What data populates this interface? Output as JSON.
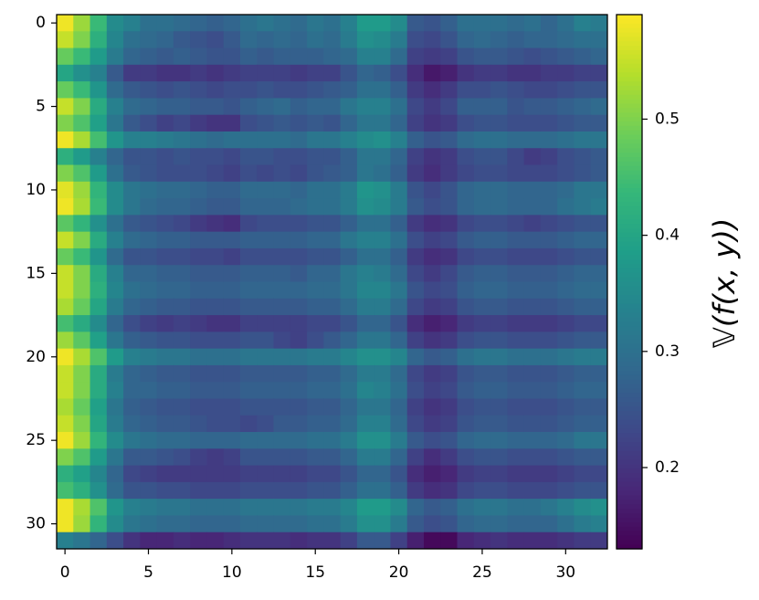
{
  "chart_data": {
    "type": "heatmap",
    "colormap": "viridis",
    "xlim": [
      -0.5,
      32.5
    ],
    "xticks": [
      0,
      5,
      10,
      15,
      20,
      25,
      30
    ],
    "ylim": [
      31.5,
      -0.5
    ],
    "yticks": [
      0,
      5,
      10,
      15,
      20,
      25,
      30
    ],
    "colorbar": {
      "label": "𝕍(f(x, y))",
      "lim": [
        0.13,
        0.59
      ],
      "ticks": [
        0.2,
        0.3,
        0.4,
        0.5
      ]
    },
    "values": [
      [
        0.58,
        0.52,
        0.44,
        0.35,
        0.33,
        0.3,
        0.3,
        0.29,
        0.28,
        0.27,
        0.28,
        0.3,
        0.31,
        0.3,
        0.29,
        0.31,
        0.3,
        0.33,
        0.38,
        0.38,
        0.35,
        0.26,
        0.25,
        0.27,
        0.3,
        0.3,
        0.3,
        0.29,
        0.3,
        0.28,
        0.3,
        0.33,
        0.32
      ],
      [
        0.55,
        0.5,
        0.42,
        0.34,
        0.3,
        0.29,
        0.28,
        0.26,
        0.25,
        0.24,
        0.26,
        0.29,
        0.28,
        0.29,
        0.28,
        0.3,
        0.29,
        0.32,
        0.36,
        0.35,
        0.32,
        0.24,
        0.23,
        0.25,
        0.28,
        0.29,
        0.28,
        0.27,
        0.28,
        0.28,
        0.29,
        0.3,
        0.3
      ],
      [
        0.48,
        0.44,
        0.38,
        0.32,
        0.28,
        0.27,
        0.26,
        0.27,
        0.26,
        0.25,
        0.25,
        0.27,
        0.26,
        0.27,
        0.27,
        0.27,
        0.28,
        0.29,
        0.33,
        0.33,
        0.29,
        0.22,
        0.21,
        0.22,
        0.25,
        0.26,
        0.26,
        0.25,
        0.24,
        0.25,
        0.26,
        0.27,
        0.28
      ],
      [
        0.4,
        0.36,
        0.33,
        0.26,
        0.21,
        0.21,
        0.2,
        0.2,
        0.21,
        0.2,
        0.21,
        0.22,
        0.22,
        0.22,
        0.21,
        0.22,
        0.22,
        0.25,
        0.28,
        0.27,
        0.24,
        0.19,
        0.16,
        0.17,
        0.2,
        0.21,
        0.21,
        0.2,
        0.2,
        0.21,
        0.21,
        0.22,
        0.22
      ],
      [
        0.48,
        0.44,
        0.37,
        0.29,
        0.26,
        0.25,
        0.24,
        0.25,
        0.24,
        0.23,
        0.24,
        0.24,
        0.25,
        0.24,
        0.24,
        0.25,
        0.26,
        0.27,
        0.3,
        0.3,
        0.27,
        0.21,
        0.19,
        0.21,
        0.24,
        0.24,
        0.25,
        0.24,
        0.23,
        0.23,
        0.24,
        0.25,
        0.25
      ],
      [
        0.55,
        0.5,
        0.41,
        0.33,
        0.29,
        0.28,
        0.27,
        0.27,
        0.26,
        0.26,
        0.25,
        0.27,
        0.28,
        0.29,
        0.27,
        0.28,
        0.28,
        0.31,
        0.33,
        0.33,
        0.3,
        0.23,
        0.21,
        0.23,
        0.27,
        0.27,
        0.27,
        0.25,
        0.26,
        0.26,
        0.27,
        0.28,
        0.29
      ],
      [
        0.5,
        0.46,
        0.39,
        0.31,
        0.26,
        0.24,
        0.22,
        0.23,
        0.21,
        0.2,
        0.2,
        0.24,
        0.25,
        0.26,
        0.25,
        0.26,
        0.25,
        0.28,
        0.31,
        0.31,
        0.28,
        0.22,
        0.2,
        0.21,
        0.24,
        0.25,
        0.25,
        0.24,
        0.24,
        0.24,
        0.25,
        0.26,
        0.26
      ],
      [
        0.58,
        0.53,
        0.45,
        0.37,
        0.33,
        0.33,
        0.32,
        0.31,
        0.3,
        0.29,
        0.3,
        0.3,
        0.3,
        0.3,
        0.29,
        0.31,
        0.31,
        0.33,
        0.35,
        0.36,
        0.33,
        0.27,
        0.25,
        0.26,
        0.29,
        0.3,
        0.3,
        0.29,
        0.29,
        0.29,
        0.3,
        0.31,
        0.31
      ],
      [
        0.42,
        0.38,
        0.33,
        0.28,
        0.25,
        0.25,
        0.24,
        0.25,
        0.24,
        0.24,
        0.23,
        0.25,
        0.25,
        0.24,
        0.24,
        0.25,
        0.25,
        0.27,
        0.31,
        0.31,
        0.28,
        0.22,
        0.2,
        0.21,
        0.24,
        0.25,
        0.25,
        0.23,
        0.21,
        0.22,
        0.24,
        0.25,
        0.26
      ],
      [
        0.5,
        0.46,
        0.38,
        0.3,
        0.26,
        0.25,
        0.24,
        0.24,
        0.24,
        0.23,
        0.22,
        0.24,
        0.23,
        0.24,
        0.23,
        0.25,
        0.26,
        0.27,
        0.31,
        0.3,
        0.27,
        0.21,
        0.19,
        0.21,
        0.23,
        0.24,
        0.24,
        0.23,
        0.23,
        0.23,
        0.24,
        0.25,
        0.26
      ],
      [
        0.57,
        0.52,
        0.43,
        0.35,
        0.31,
        0.3,
        0.29,
        0.29,
        0.28,
        0.27,
        0.27,
        0.29,
        0.29,
        0.29,
        0.28,
        0.3,
        0.3,
        0.32,
        0.37,
        0.36,
        0.32,
        0.25,
        0.23,
        0.25,
        0.28,
        0.29,
        0.29,
        0.28,
        0.28,
        0.28,
        0.29,
        0.31,
        0.31
      ],
      [
        0.58,
        0.53,
        0.44,
        0.35,
        0.31,
        0.29,
        0.28,
        0.28,
        0.27,
        0.26,
        0.26,
        0.28,
        0.28,
        0.28,
        0.29,
        0.3,
        0.3,
        0.32,
        0.36,
        0.35,
        0.32,
        0.26,
        0.24,
        0.25,
        0.28,
        0.29,
        0.29,
        0.28,
        0.28,
        0.28,
        0.3,
        0.31,
        0.32
      ],
      [
        0.47,
        0.43,
        0.36,
        0.3,
        0.26,
        0.25,
        0.24,
        0.23,
        0.21,
        0.2,
        0.19,
        0.23,
        0.24,
        0.24,
        0.24,
        0.25,
        0.25,
        0.27,
        0.3,
        0.3,
        0.27,
        0.21,
        0.19,
        0.2,
        0.23,
        0.24,
        0.24,
        0.23,
        0.22,
        0.23,
        0.24,
        0.25,
        0.25
      ],
      [
        0.55,
        0.5,
        0.41,
        0.33,
        0.29,
        0.28,
        0.27,
        0.27,
        0.26,
        0.26,
        0.26,
        0.27,
        0.27,
        0.27,
        0.27,
        0.28,
        0.28,
        0.31,
        0.33,
        0.33,
        0.3,
        0.24,
        0.22,
        0.23,
        0.26,
        0.27,
        0.27,
        0.26,
        0.26,
        0.26,
        0.27,
        0.28,
        0.28
      ],
      [
        0.48,
        0.44,
        0.37,
        0.29,
        0.25,
        0.25,
        0.24,
        0.24,
        0.23,
        0.23,
        0.22,
        0.24,
        0.24,
        0.24,
        0.24,
        0.25,
        0.25,
        0.27,
        0.3,
        0.3,
        0.27,
        0.21,
        0.19,
        0.2,
        0.23,
        0.24,
        0.24,
        0.23,
        0.23,
        0.23,
        0.24,
        0.25,
        0.25
      ],
      [
        0.55,
        0.5,
        0.41,
        0.33,
        0.28,
        0.28,
        0.27,
        0.27,
        0.26,
        0.26,
        0.26,
        0.27,
        0.27,
        0.27,
        0.26,
        0.28,
        0.28,
        0.31,
        0.33,
        0.32,
        0.29,
        0.23,
        0.21,
        0.23,
        0.26,
        0.27,
        0.27,
        0.26,
        0.26,
        0.26,
        0.27,
        0.28,
        0.28
      ],
      [
        0.55,
        0.5,
        0.42,
        0.34,
        0.3,
        0.29,
        0.28,
        0.28,
        0.27,
        0.27,
        0.27,
        0.28,
        0.28,
        0.28,
        0.28,
        0.29,
        0.29,
        0.31,
        0.34,
        0.34,
        0.31,
        0.25,
        0.23,
        0.24,
        0.27,
        0.28,
        0.28,
        0.27,
        0.27,
        0.27,
        0.28,
        0.29,
        0.29
      ],
      [
        0.53,
        0.48,
        0.4,
        0.32,
        0.28,
        0.27,
        0.26,
        0.26,
        0.25,
        0.25,
        0.25,
        0.26,
        0.26,
        0.26,
        0.26,
        0.27,
        0.27,
        0.29,
        0.32,
        0.32,
        0.29,
        0.23,
        0.21,
        0.22,
        0.25,
        0.26,
        0.26,
        0.25,
        0.25,
        0.25,
        0.26,
        0.27,
        0.27
      ],
      [
        0.45,
        0.41,
        0.35,
        0.28,
        0.24,
        0.22,
        0.21,
        0.22,
        0.21,
        0.2,
        0.2,
        0.22,
        0.22,
        0.22,
        0.22,
        0.23,
        0.23,
        0.25,
        0.28,
        0.28,
        0.25,
        0.19,
        0.17,
        0.18,
        0.21,
        0.22,
        0.22,
        0.21,
        0.21,
        0.21,
        0.22,
        0.23,
        0.23
      ],
      [
        0.52,
        0.47,
        0.39,
        0.31,
        0.27,
        0.26,
        0.25,
        0.25,
        0.24,
        0.24,
        0.24,
        0.25,
        0.25,
        0.23,
        0.22,
        0.24,
        0.26,
        0.28,
        0.31,
        0.31,
        0.28,
        0.22,
        0.2,
        0.21,
        0.24,
        0.25,
        0.25,
        0.24,
        0.24,
        0.24,
        0.25,
        0.26,
        0.26
      ],
      [
        0.58,
        0.53,
        0.46,
        0.38,
        0.33,
        0.32,
        0.31,
        0.31,
        0.3,
        0.3,
        0.3,
        0.31,
        0.31,
        0.31,
        0.31,
        0.32,
        0.32,
        0.34,
        0.36,
        0.36,
        0.34,
        0.28,
        0.26,
        0.27,
        0.3,
        0.31,
        0.31,
        0.3,
        0.3,
        0.3,
        0.31,
        0.32,
        0.32
      ],
      [
        0.55,
        0.5,
        0.41,
        0.32,
        0.28,
        0.27,
        0.26,
        0.26,
        0.25,
        0.25,
        0.25,
        0.26,
        0.26,
        0.26,
        0.26,
        0.27,
        0.27,
        0.29,
        0.32,
        0.32,
        0.29,
        0.23,
        0.21,
        0.22,
        0.25,
        0.26,
        0.26,
        0.25,
        0.25,
        0.25,
        0.26,
        0.27,
        0.27
      ],
      [
        0.55,
        0.5,
        0.41,
        0.33,
        0.28,
        0.28,
        0.27,
        0.27,
        0.26,
        0.26,
        0.26,
        0.27,
        0.27,
        0.27,
        0.27,
        0.28,
        0.28,
        0.3,
        0.34,
        0.33,
        0.3,
        0.24,
        0.22,
        0.23,
        0.26,
        0.27,
        0.27,
        0.26,
        0.26,
        0.26,
        0.27,
        0.28,
        0.28
      ],
      [
        0.53,
        0.48,
        0.39,
        0.31,
        0.27,
        0.26,
        0.25,
        0.25,
        0.24,
        0.24,
        0.24,
        0.25,
        0.25,
        0.25,
        0.25,
        0.26,
        0.26,
        0.28,
        0.31,
        0.31,
        0.28,
        0.22,
        0.2,
        0.21,
        0.24,
        0.25,
        0.25,
        0.24,
        0.24,
        0.24,
        0.25,
        0.26,
        0.26
      ],
      [
        0.55,
        0.5,
        0.4,
        0.32,
        0.28,
        0.27,
        0.26,
        0.26,
        0.25,
        0.24,
        0.24,
        0.23,
        0.24,
        0.26,
        0.26,
        0.27,
        0.27,
        0.29,
        0.33,
        0.33,
        0.29,
        0.23,
        0.21,
        0.22,
        0.25,
        0.26,
        0.26,
        0.25,
        0.25,
        0.25,
        0.26,
        0.27,
        0.27
      ],
      [
        0.58,
        0.52,
        0.43,
        0.35,
        0.31,
        0.3,
        0.29,
        0.29,
        0.28,
        0.28,
        0.28,
        0.29,
        0.29,
        0.29,
        0.29,
        0.3,
        0.3,
        0.32,
        0.36,
        0.36,
        0.32,
        0.26,
        0.24,
        0.25,
        0.28,
        0.29,
        0.29,
        0.28,
        0.28,
        0.28,
        0.29,
        0.31,
        0.31
      ],
      [
        0.5,
        0.46,
        0.38,
        0.31,
        0.26,
        0.26,
        0.25,
        0.24,
        0.22,
        0.21,
        0.22,
        0.25,
        0.25,
        0.25,
        0.25,
        0.26,
        0.26,
        0.28,
        0.32,
        0.32,
        0.28,
        0.22,
        0.19,
        0.21,
        0.24,
        0.25,
        0.25,
        0.24,
        0.24,
        0.24,
        0.25,
        0.26,
        0.26
      ],
      [
        0.42,
        0.39,
        0.34,
        0.28,
        0.23,
        0.22,
        0.21,
        0.21,
        0.21,
        0.21,
        0.21,
        0.22,
        0.22,
        0.22,
        0.22,
        0.23,
        0.23,
        0.25,
        0.28,
        0.28,
        0.25,
        0.19,
        0.17,
        0.18,
        0.21,
        0.22,
        0.22,
        0.21,
        0.21,
        0.21,
        0.22,
        0.23,
        0.23
      ],
      [
        0.45,
        0.42,
        0.36,
        0.29,
        0.25,
        0.25,
        0.24,
        0.24,
        0.23,
        0.23,
        0.23,
        0.24,
        0.24,
        0.24,
        0.24,
        0.25,
        0.25,
        0.27,
        0.3,
        0.3,
        0.27,
        0.21,
        0.19,
        0.2,
        0.23,
        0.24,
        0.24,
        0.23,
        0.23,
        0.23,
        0.24,
        0.25,
        0.25
      ],
      [
        0.58,
        0.53,
        0.46,
        0.37,
        0.33,
        0.32,
        0.31,
        0.31,
        0.3,
        0.3,
        0.3,
        0.31,
        0.31,
        0.31,
        0.31,
        0.32,
        0.32,
        0.34,
        0.38,
        0.38,
        0.35,
        0.28,
        0.26,
        0.27,
        0.3,
        0.31,
        0.31,
        0.3,
        0.3,
        0.31,
        0.33,
        0.35,
        0.36
      ],
      [
        0.58,
        0.52,
        0.43,
        0.35,
        0.31,
        0.3,
        0.29,
        0.29,
        0.28,
        0.28,
        0.28,
        0.29,
        0.29,
        0.29,
        0.29,
        0.3,
        0.3,
        0.32,
        0.36,
        0.36,
        0.32,
        0.26,
        0.24,
        0.25,
        0.28,
        0.29,
        0.29,
        0.28,
        0.28,
        0.28,
        0.3,
        0.32,
        0.33
      ],
      [
        0.33,
        0.31,
        0.28,
        0.24,
        0.2,
        0.18,
        0.18,
        0.19,
        0.18,
        0.18,
        0.19,
        0.2,
        0.2,
        0.2,
        0.19,
        0.2,
        0.2,
        0.22,
        0.26,
        0.26,
        0.22,
        0.17,
        0.14,
        0.14,
        0.18,
        0.19,
        0.2,
        0.19,
        0.19,
        0.19,
        0.2,
        0.21,
        0.21
      ]
    ]
  }
}
